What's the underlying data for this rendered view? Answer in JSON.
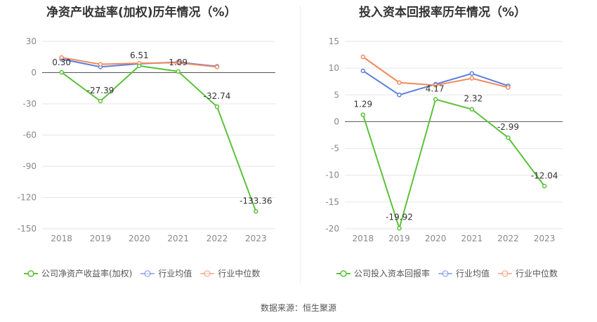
{
  "colors": {
    "company": "#5cc13a",
    "average": "#5b7fe0",
    "median": "#f08a5d",
    "grid": "#e6e6e6",
    "axis": "#888888",
    "tick_text": "#888888",
    "label_text": "#333333"
  },
  "source_text": "数据来源：恒生聚源",
  "chart_data": [
    {
      "type": "line",
      "title": "净资产收益率(加权)历年情况（%）",
      "categories": [
        "2018",
        "2019",
        "2020",
        "2021",
        "2022",
        "2023"
      ],
      "yticks": [
        "30",
        "0",
        "-30",
        "-60",
        "-90",
        "-120",
        "-150"
      ],
      "ylim": [
        -150,
        30
      ],
      "grid": true,
      "legend_position": "bottom-left",
      "series": [
        {
          "name": "公司净资产收益率(加权)",
          "key": "company",
          "values": [
            0.3,
            -27.39,
            6.51,
            1.09,
            -32.74,
            -133.36
          ],
          "labels": [
            "0.30",
            "-27.39",
            "6.51",
            "1.09",
            "-32.74",
            "-133.36"
          ]
        },
        {
          "name": "行业均值",
          "key": "average",
          "values": [
            13,
            5.5,
            8.5,
            10,
            6,
            null
          ]
        },
        {
          "name": "行业中位数",
          "key": "median",
          "values": [
            14.5,
            8,
            9,
            9.5,
            5.5,
            null
          ]
        }
      ]
    },
    {
      "type": "line",
      "title": "投入资本回报率历年情况（%）",
      "categories": [
        "2018",
        "2019",
        "2020",
        "2021",
        "2022",
        "2023"
      ],
      "yticks": [
        "15",
        "10",
        "5",
        "0",
        "-5",
        "-10",
        "-15",
        "-20"
      ],
      "ylim": [
        -20,
        15
      ],
      "grid": true,
      "legend_position": "bottom-left",
      "series": [
        {
          "name": "公司投入资本回报率",
          "key": "company",
          "values": [
            1.29,
            -19.92,
            4.17,
            2.32,
            -2.99,
            -12.04
          ],
          "labels": [
            "1.29",
            "-19.92",
            "4.17",
            "2.32",
            "-2.99",
            "-12.04"
          ]
        },
        {
          "name": "行业均值",
          "key": "average",
          "values": [
            9.5,
            5,
            7,
            9,
            6.7,
            null
          ]
        },
        {
          "name": "行业中位数",
          "key": "median",
          "values": [
            12.1,
            7.3,
            6.8,
            8.1,
            6.4,
            null
          ]
        }
      ]
    }
  ]
}
